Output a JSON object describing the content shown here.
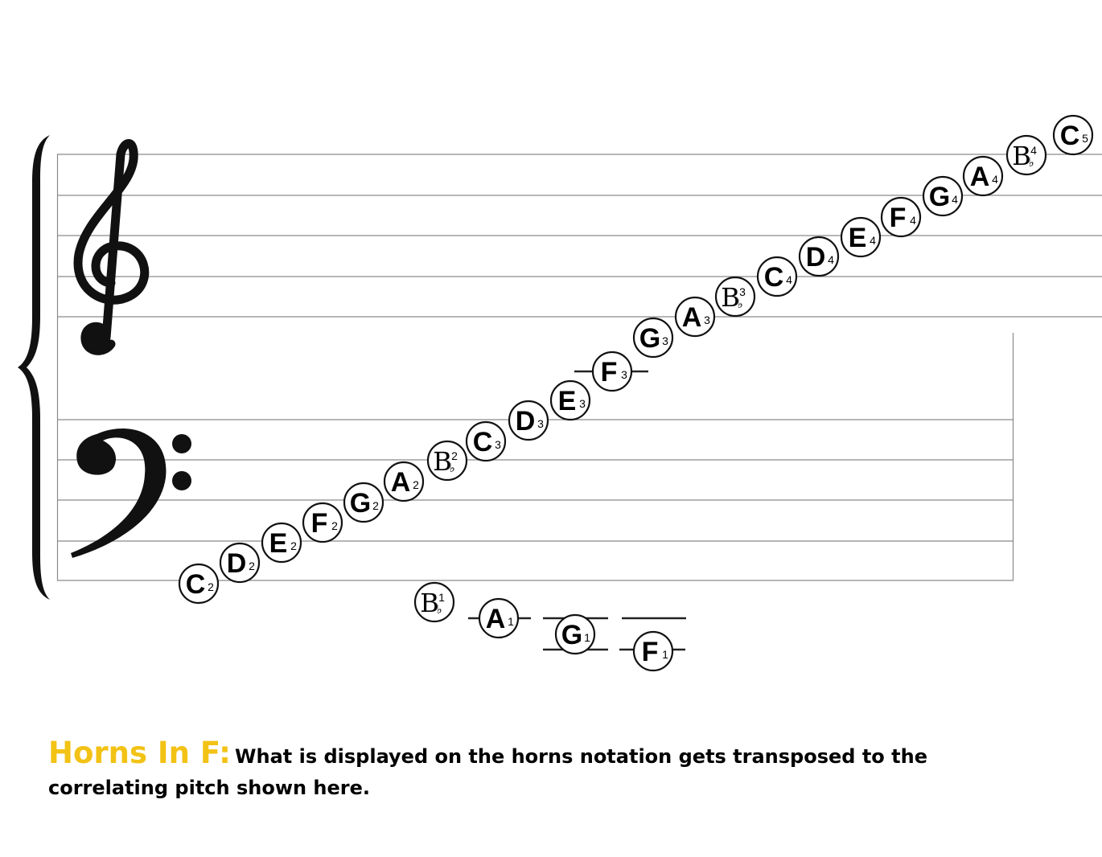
{
  "notes": [
    {
      "letter": "C",
      "octave": "2"
    },
    {
      "letter": "D",
      "octave": "2"
    },
    {
      "letter": "E",
      "octave": "2"
    },
    {
      "letter": "F",
      "octave": "2"
    },
    {
      "letter": "G",
      "octave": "2"
    },
    {
      "letter": "A",
      "octave": "2"
    },
    {
      "letter": "B",
      "octave": "2",
      "accidental": "♭"
    },
    {
      "letter": "C",
      "octave": "3"
    },
    {
      "letter": "D",
      "octave": "3"
    },
    {
      "letter": "E",
      "octave": "3"
    },
    {
      "letter": "F",
      "octave": "3"
    },
    {
      "letter": "G",
      "octave": "3"
    },
    {
      "letter": "A",
      "octave": "3"
    },
    {
      "letter": "B",
      "octave": "3",
      "accidental": "♭"
    },
    {
      "letter": "C",
      "octave": "4"
    },
    {
      "letter": "D",
      "octave": "4"
    },
    {
      "letter": "E",
      "octave": "4"
    },
    {
      "letter": "F",
      "octave": "4"
    },
    {
      "letter": "G",
      "octave": "4"
    },
    {
      "letter": "A",
      "octave": "4"
    },
    {
      "letter": "B",
      "octave": "4",
      "accidental": "♭"
    },
    {
      "letter": "C",
      "octave": "5"
    },
    {
      "letter": "B",
      "octave": "1",
      "accidental": "♭"
    },
    {
      "letter": "A",
      "octave": "1"
    },
    {
      "letter": "G",
      "octave": "1"
    },
    {
      "letter": "F",
      "octave": "1"
    }
  ],
  "caption": {
    "title": "Horns In F:",
    "body": "What is displayed on the horns notation gets transposed to the correlating pitch shown here."
  },
  "colors": {
    "title": "#f2c215",
    "ink": "#000000"
  }
}
